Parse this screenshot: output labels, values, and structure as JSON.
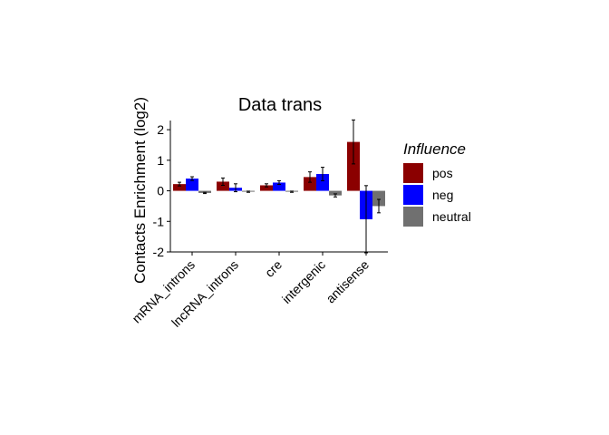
{
  "chart_data": {
    "type": "bar",
    "title": "Data trans",
    "xlabel": "",
    "ylabel": "Contacts Enrichment (log2)",
    "ylim": [
      -2,
      2.3
    ],
    "yticks": [
      -2,
      -1,
      0,
      1,
      2
    ],
    "grid": false,
    "legend_position": "right",
    "legend_title": "Influence",
    "categories": [
      "mRNA_introns",
      "lncRNA_introns",
      "cre",
      "intergenic",
      "antisense"
    ],
    "series": [
      {
        "name": "pos",
        "color": "#8B0000",
        "values": [
          0.22,
          0.3,
          0.18,
          0.45,
          1.6
        ],
        "error": [
          0.06,
          0.12,
          0.05,
          0.17,
          0.72
        ]
      },
      {
        "name": "neg",
        "color": "#0000FF",
        "values": [
          0.4,
          0.1,
          0.27,
          0.55,
          -0.93
        ],
        "error": [
          0.06,
          0.13,
          0.06,
          0.22,
          1.1
        ]
      },
      {
        "name": "neutral",
        "color": "#707070",
        "values": [
          -0.07,
          -0.03,
          -0.03,
          -0.15,
          -0.5
        ],
        "error": [
          0.02,
          0.02,
          0.02,
          0.05,
          0.22
        ]
      }
    ]
  }
}
